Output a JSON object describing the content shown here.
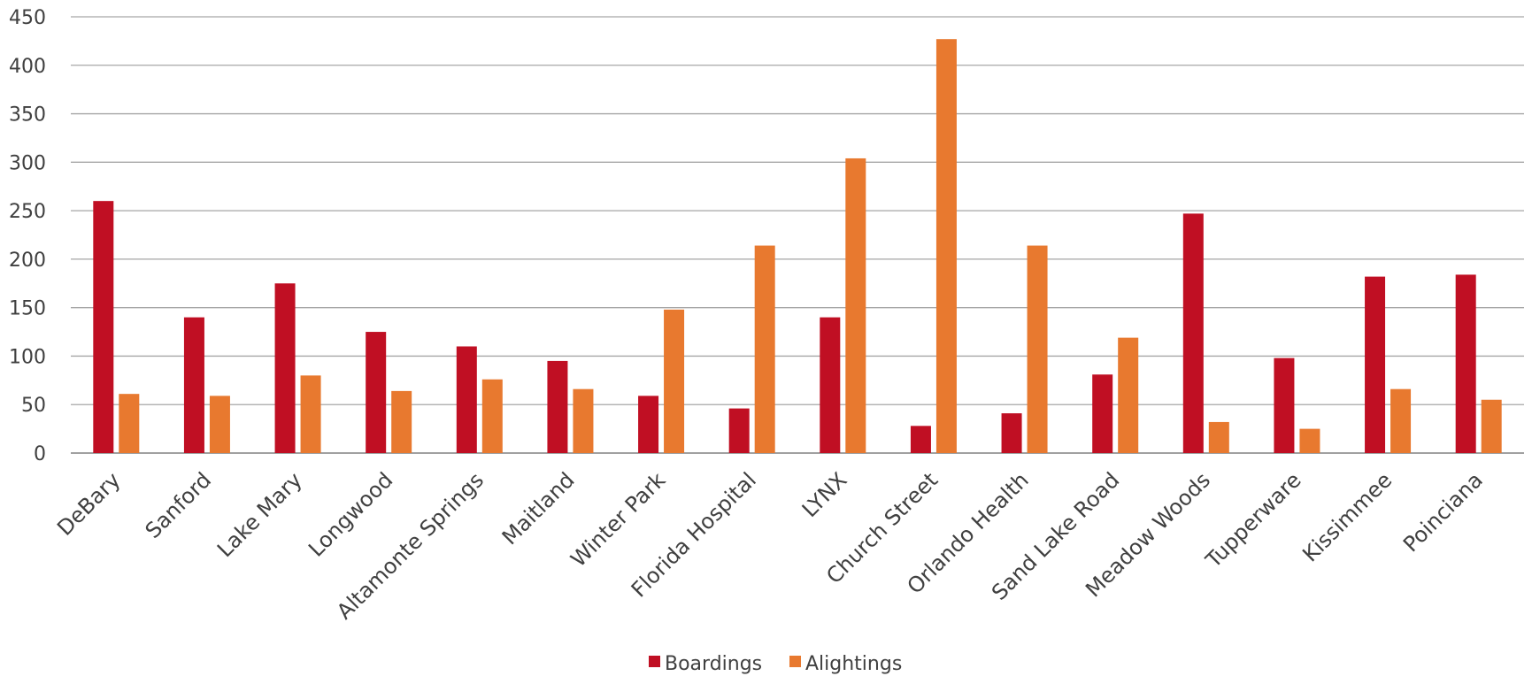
{
  "chart_data": {
    "type": "bar",
    "title": "",
    "xlabel": "",
    "ylabel": "",
    "ylim": [
      0,
      450
    ],
    "yticks": [
      0,
      50,
      100,
      150,
      200,
      250,
      300,
      350,
      400,
      450
    ],
    "grid": true,
    "legend_position": "bottom",
    "categories": [
      "DeBary",
      "Sanford",
      "Lake Mary",
      "Longwood",
      "Altamonte Springs",
      "Maitland",
      "Winter Park",
      "Florida Hospital",
      "LYNX",
      "Church Street",
      "Orlando Health",
      "Sand Lake Road",
      "Meadow Woods",
      "Tupperware",
      "Kissimmee",
      "Poinciana"
    ],
    "series": [
      {
        "name": "Boardings",
        "color": "#c00f23",
        "values": [
          260,
          140,
          175,
          125,
          110,
          95,
          59,
          46,
          140,
          28,
          41,
          81,
          247,
          98,
          182,
          184
        ]
      },
      {
        "name": "Alightings",
        "color": "#e8792f",
        "values": [
          61,
          59,
          80,
          64,
          76,
          66,
          148,
          214,
          304,
          427,
          214,
          119,
          32,
          25,
          66,
          55
        ]
      }
    ]
  }
}
